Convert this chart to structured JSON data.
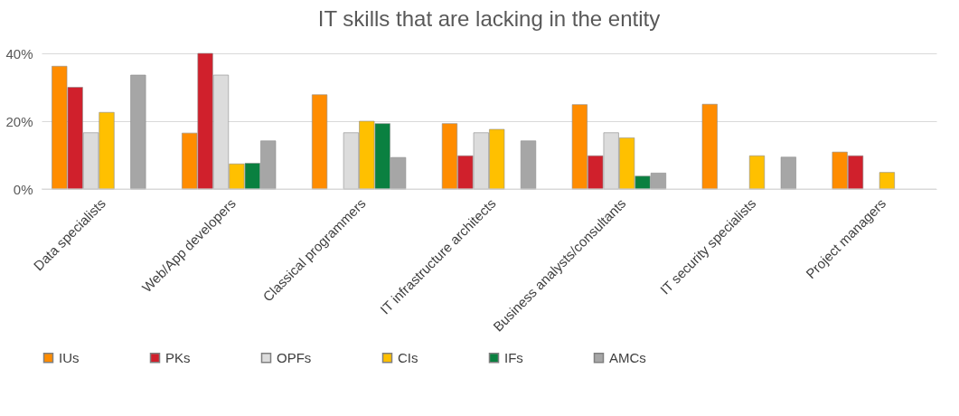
{
  "chart_data": {
    "type": "bar",
    "title": "IT skills that are lacking in the entity",
    "categories": [
      "Data specialists",
      "Web/App developers",
      "Classical programmers",
      "IT infrastructure architects",
      "Business analysts/consultants",
      "IT security specialists",
      "Project managers"
    ],
    "series": [
      {
        "name": "IUs",
        "color": "#ff8c00",
        "values": [
          36.2,
          16.5,
          27.8,
          19.3,
          24.9,
          25,
          10.9
        ]
      },
      {
        "name": "PKs",
        "color": "#d0202c",
        "values": [
          30,
          40,
          null,
          9.8,
          9.8,
          null,
          9.8
        ]
      },
      {
        "name": "OPFs",
        "color": "#dcdcdc",
        "values": [
          16.6,
          33.6,
          16.6,
          16.6,
          16.6,
          null,
          null
        ]
      },
      {
        "name": "CIs",
        "color": "#ffc000",
        "values": [
          22.6,
          7.4,
          20,
          17.6,
          15.1,
          9.8,
          4.9
        ]
      },
      {
        "name": "IFs",
        "color": "#0a8040",
        "values": [
          null,
          7.6,
          19.3,
          null,
          3.8,
          null,
          null
        ]
      },
      {
        "name": "AMCs",
        "color": "#a6a6a6",
        "values": [
          33.6,
          14.2,
          9.3,
          14.2,
          4.7,
          9.4,
          null
        ]
      }
    ],
    "ylim": [
      0,
      40
    ],
    "yticks": [
      {
        "value": 0,
        "label": "0%"
      },
      {
        "value": 20,
        "label": "20%"
      },
      {
        "value": 40,
        "label": "40%"
      }
    ],
    "grid": "y",
    "legend": "bottom"
  }
}
